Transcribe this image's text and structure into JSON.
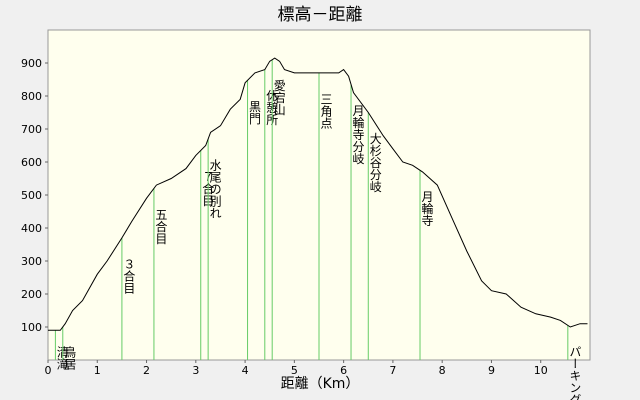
{
  "chart_data": {
    "type": "line",
    "title": "標高－距離",
    "x_label": "距離（Km）",
    "series": [
      {
        "color": "#000000",
        "x": [
          0,
          0.25,
          0.35,
          0.5,
          0.7,
          1.0,
          1.2,
          1.5,
          1.7,
          2.0,
          2.2,
          2.5,
          2.8,
          3.0,
          3.2,
          3.3,
          3.5,
          3.7,
          3.9,
          4.0,
          4.2,
          4.4,
          4.5,
          4.6,
          4.7,
          4.8,
          5.0,
          5.3,
          5.6,
          5.9,
          6.0,
          6.1,
          6.2,
          6.5,
          6.8,
          7.0,
          7.2,
          7.4,
          7.6,
          7.9,
          8.2,
          8.5,
          8.8,
          9.0,
          9.3,
          9.6,
          9.9,
          10.2,
          10.4,
          10.6,
          10.8,
          10.95
        ],
        "values": [
          90,
          90,
          110,
          150,
          180,
          260,
          300,
          370,
          420,
          490,
          530,
          550,
          580,
          620,
          650,
          690,
          710,
          760,
          790,
          840,
          870,
          880,
          905,
          915,
          905,
          880,
          870,
          870,
          870,
          870,
          880,
          860,
          810,
          750,
          680,
          640,
          600,
          590,
          570,
          530,
          430,
          330,
          240,
          210,
          200,
          160,
          140,
          130,
          120,
          100,
          110,
          110
        ]
      }
    ],
    "markers": [
      {
        "x": 0.15,
        "label": "清滝"
      },
      {
        "x": 0.3,
        "label": "鳥居"
      },
      {
        "x": 1.5,
        "label": "３合目"
      },
      {
        "x": 2.15,
        "label": "五合目"
      },
      {
        "x": 3.1,
        "label": "７合目"
      },
      {
        "x": 3.25,
        "label": "水尾の別れ"
      },
      {
        "x": 4.05,
        "label": "黒門"
      },
      {
        "x": 4.4,
        "label": "休憩所"
      },
      {
        "x": 4.55,
        "label": "愛宕山"
      },
      {
        "x": 5.5,
        "label": "三角点"
      },
      {
        "x": 6.15,
        "label": "月輪寺分岐"
      },
      {
        "x": 6.5,
        "label": "大杉谷分岐"
      },
      {
        "x": 7.55,
        "label": "月輪寺"
      },
      {
        "x": 10.55,
        "label": "パーキング"
      }
    ],
    "xlim": [
      0,
      11
    ],
    "xticks": [
      0,
      1,
      2,
      3,
      4,
      5,
      6,
      7,
      8,
      9,
      10
    ],
    "ylim": [
      0,
      1000
    ],
    "yticks": [
      100,
      200,
      300,
      400,
      500,
      600,
      700,
      800,
      900
    ]
  }
}
